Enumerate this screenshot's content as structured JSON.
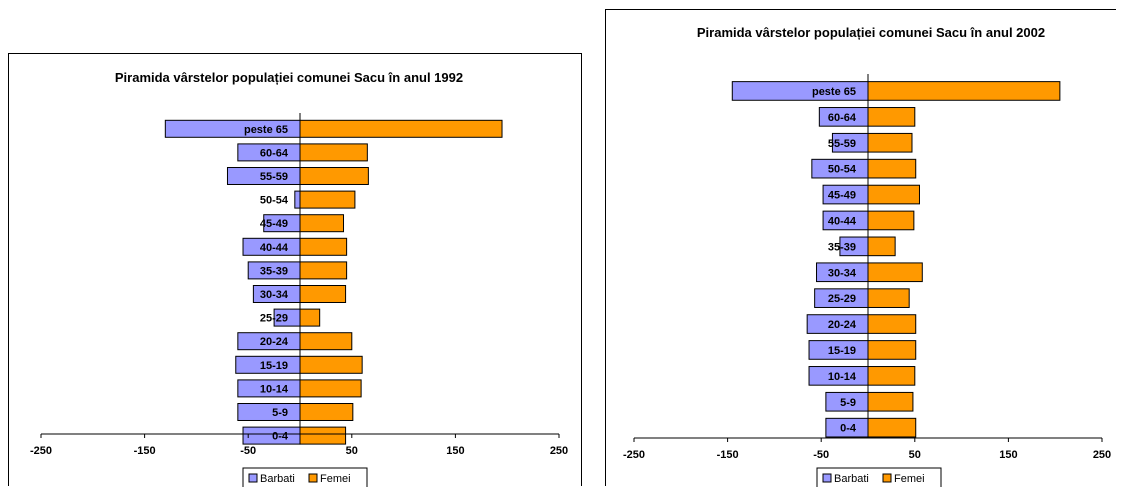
{
  "colors": {
    "barbati": "#9999FF",
    "femei": "#FF9900"
  },
  "chart_data": [
    {
      "type": "bar",
      "orientation": "horizontal-diverging",
      "title": "Piramida vârstelor populației comunei Sacu în anul 1992",
      "categories": [
        "peste 65",
        "60-64",
        "55-59",
        "50-54",
        "45-49",
        "40-44",
        "35-39",
        "30-34",
        "25-29",
        "20-24",
        "15-19",
        "10-14",
        "5-9",
        "0-4"
      ],
      "series": [
        {
          "name": "Barbati",
          "values": [
            -130,
            -60,
            -70,
            -5,
            -35,
            -55,
            -50,
            -45,
            -25,
            -60,
            -62,
            -60,
            -60,
            -55
          ]
        },
        {
          "name": "Femei",
          "values": [
            195,
            65,
            66,
            53,
            42,
            45,
            45,
            44,
            19,
            50,
            60,
            59,
            51,
            44
          ]
        }
      ],
      "xlim": [
        -250,
        250
      ],
      "xticks": [
        -250,
        -150,
        -50,
        50,
        150,
        250
      ],
      "grid": false,
      "legend": "bottom"
    },
    {
      "type": "bar",
      "orientation": "horizontal-diverging",
      "title": "Piramida vârstelor populației comunei Sacu în anul 2002",
      "categories": [
        "peste 65",
        "60-64",
        "55-59",
        "50-54",
        "45-49",
        "40-44",
        "35-39",
        "30-34",
        "25-29",
        "20-24",
        "15-19",
        "10-14",
        "5-9",
        "0-4"
      ],
      "series": [
        {
          "name": "Barbati",
          "values": [
            -145,
            -52,
            -38,
            -60,
            -48,
            -48,
            -30,
            -55,
            -57,
            -65,
            -63,
            -63,
            -45,
            -45
          ]
        },
        {
          "name": "Femei",
          "values": [
            205,
            50,
            47,
            51,
            55,
            49,
            29,
            58,
            44,
            51,
            51,
            50,
            48,
            51
          ]
        }
      ],
      "xlim": [
        -250,
        250
      ],
      "xticks": [
        -250,
        -150,
        -50,
        50,
        150,
        250
      ],
      "grid": false,
      "legend": "bottom"
    }
  ]
}
